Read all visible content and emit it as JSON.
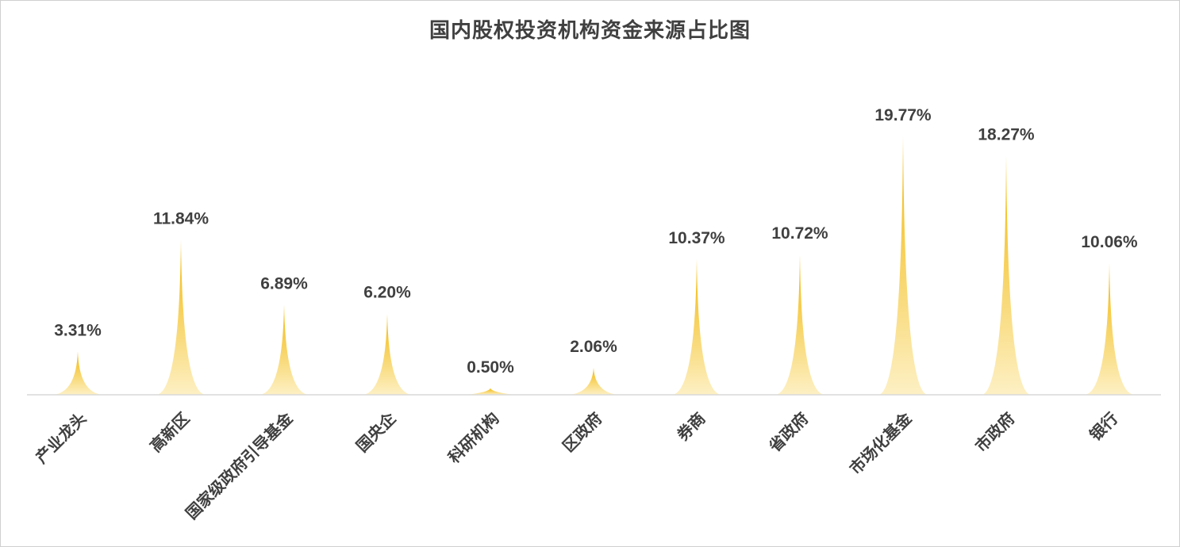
{
  "chart_data": {
    "type": "bar",
    "title": "国内股权投资机构资金来源占比图",
    "categories": [
      "产业龙头",
      "高新区",
      "国家级政府引导基金",
      "国央企",
      "科研机构",
      "区政府",
      "券商",
      "省政府",
      "市场化基金",
      "市政府",
      "银行"
    ],
    "values": [
      3.31,
      11.84,
      6.89,
      6.2,
      0.5,
      2.06,
      10.37,
      10.72,
      19.77,
      18.27,
      10.06
    ],
    "value_labels": [
      "3.31%",
      "11.84%",
      "6.89%",
      "6.20%",
      "0.50%",
      "2.06%",
      "10.37%",
      "10.72%",
      "19.77%",
      "18.27%",
      "10.06%"
    ],
    "unit": "%",
    "colors": {
      "top": "#f2b705",
      "bottom": "#fdf0c4",
      "axis": "#d9d9d9"
    },
    "grid": false,
    "legend": "none"
  }
}
